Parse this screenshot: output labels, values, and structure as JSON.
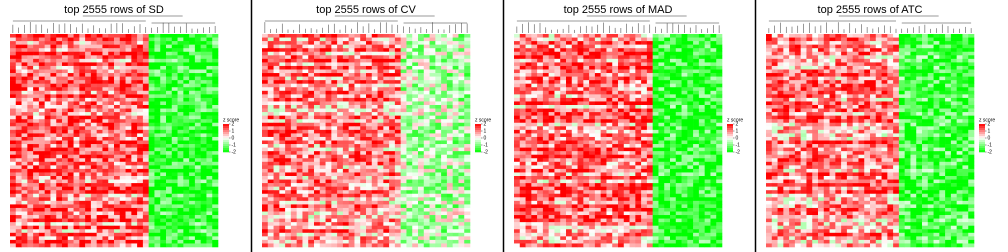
{
  "panels": [
    {
      "title": "top 2555 rows of SD",
      "legend_title": "z score",
      "legend_ticks": [
        2,
        1,
        0,
        -1,
        -2
      ]
    },
    {
      "title": "top 2555 rows of CV",
      "legend_title": "z score",
      "legend_ticks": [
        2,
        1,
        0,
        -1,
        -2
      ]
    },
    {
      "title": "top 2555 rows of MAD",
      "legend_title": "z score",
      "legend_ticks": [
        2,
        1,
        0,
        -1,
        -2
      ]
    },
    {
      "title": "top 2555 rows of ATC",
      "legend_title": "z score",
      "legend_ticks": [
        2,
        1,
        0,
        -1,
        -2
      ]
    }
  ],
  "color_scale": {
    "high": "#ff0000",
    "mid": "#ffffff",
    "low": "#00ff00"
  }
}
